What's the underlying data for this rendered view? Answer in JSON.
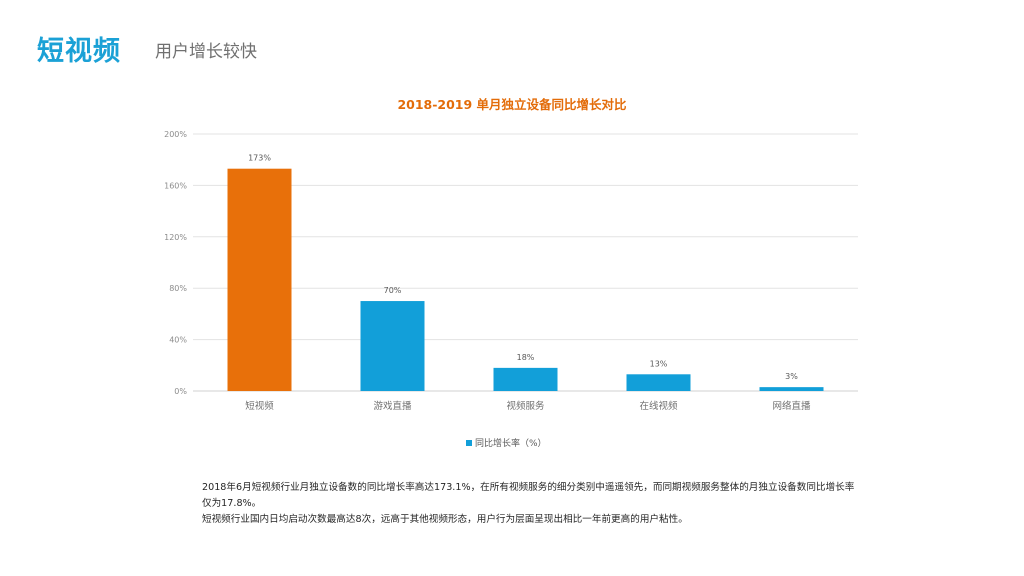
{
  "header": {
    "title": "短视频",
    "subtitle": "用户增长较快"
  },
  "description": [
    "2018年6月短视频行业月独立设备数的同比增长率高达173.1%，在所有视频服务的细分类别中遥遥领先，而同期视频服务整体的月独立设备数同比增长率仅为17.8%。",
    "短视频行业国内日均启动次数最高达8次，远高于其他视频形态，用户行为层面呈现出相比一年前更高的用户粘性。"
  ],
  "chart_data": {
    "type": "bar",
    "title": "2018-2019 单月独立设备同比增长对比",
    "categories": [
      "短视频",
      "游戏直播",
      "视频服务",
      "在线视频",
      "网络直播"
    ],
    "series": [
      {
        "name": "同比增长率（%）",
        "values": [
          173,
          70,
          18,
          13,
          3
        ],
        "labels": [
          "173%",
          "70%",
          "18%",
          "13%",
          "3%"
        ]
      }
    ],
    "ylim": [
      0,
      200
    ],
    "yticks": [
      "0%",
      "40%",
      "80%",
      "120%",
      "160%",
      "200%"
    ],
    "grid": true,
    "legend_position": "bottom",
    "colors": {
      "highlight": "#e8700a",
      "default": "#129fd9",
      "grid": "#e3e3e3",
      "axis_text": "#8c8c8c"
    }
  }
}
